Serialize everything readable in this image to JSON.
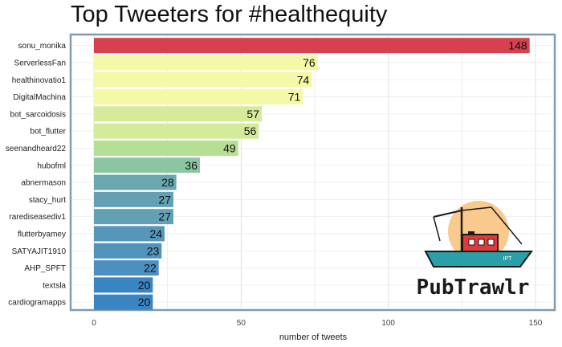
{
  "chart_data": {
    "type": "bar",
    "orientation": "horizontal",
    "title": "Top Tweeters for #healthequity",
    "xlabel": "number of tweets",
    "ylabel": "",
    "xlim": [
      0,
      155
    ],
    "xticks": [
      0,
      50,
      100,
      150
    ],
    "grid": true,
    "categories": [
      "sonu_monika",
      "ServerlessFan",
      "healthinovatio1",
      "DigitalMachina",
      "bot_sarcoidosis",
      "bot_flutter",
      "seenandheard22",
      "hubofml",
      "abnermason",
      "stacy_hurt",
      "rarediseasediv1",
      "flutterbyamey",
      "SATYAJIT1910",
      "AHP_SPFT",
      "textsla",
      "cardiogramapps"
    ],
    "values": [
      148,
      76,
      74,
      71,
      57,
      56,
      49,
      36,
      28,
      27,
      27,
      24,
      23,
      22,
      20,
      20
    ],
    "colors": [
      "#d7404f",
      "#f3f9a6",
      "#f3f9a6",
      "#f3f9a6",
      "#d4eb9a",
      "#d4eb9a",
      "#b5df93",
      "#8cc6a1",
      "#6aa8b0",
      "#63a0b3",
      "#63a0b3",
      "#5596ba",
      "#5193bc",
      "#4d8fbf",
      "#3a84c2",
      "#3a84c2"
    ]
  },
  "logo": {
    "name": "PubTrawlr",
    "badge": "IPT",
    "colors": {
      "sun": "#f9c98e",
      "hull": "#2b9fa8",
      "cabin": "#e03a3a",
      "outline": "#1a1a1a"
    }
  }
}
